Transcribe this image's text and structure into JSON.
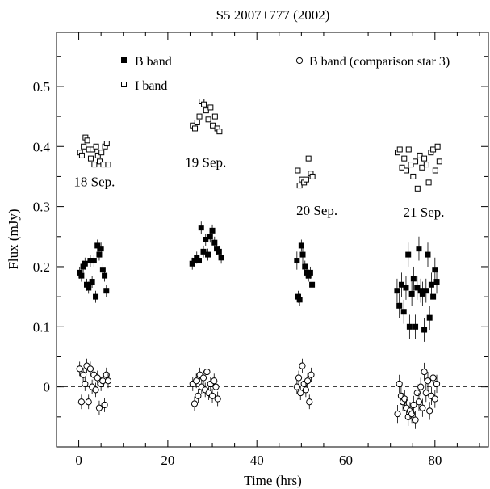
{
  "chart_data": {
    "type": "scatter",
    "title": "S5 2007+777 (2002)",
    "xlabel": "Time (hrs)",
    "ylabel": "Flux (mJy)",
    "xlim": [
      -5,
      92
    ],
    "ylim": [
      -0.1,
      0.59
    ],
    "xticks": [
      0,
      20,
      40,
      60,
      80
    ],
    "yticks": [
      0,
      0.1,
      0.2,
      0.3,
      0.4,
      0.5
    ],
    "ytick_labels": [
      "0",
      "0.1",
      "0.2",
      "0.3",
      "0.4",
      "0.5"
    ],
    "legend": [
      {
        "label": "B band",
        "marker": "filled-square"
      },
      {
        "label": "I band",
        "marker": "open-square"
      },
      {
        "label": "B band (comparison star 3)",
        "marker": "open-circle"
      }
    ],
    "reference_line": {
      "y": 0,
      "style": "dashed"
    },
    "annotations": [
      {
        "text": "18 Sep.",
        "x": 3.5,
        "y": 0.334
      },
      {
        "text": "19 Sep.",
        "x": 28.5,
        "y": 0.366
      },
      {
        "text": "20 Sep.",
        "x": 53.5,
        "y": 0.286
      },
      {
        "text": "21 Sep.",
        "x": 77.5,
        "y": 0.283
      }
    ],
    "series": [
      {
        "name": "B band",
        "marker": "filled-square",
        "points": [
          [
            0.2,
            0.19,
            0.01
          ],
          [
            0.6,
            0.185,
            0.01
          ],
          [
            1.0,
            0.2,
            0.01
          ],
          [
            1.4,
            0.205,
            0.01
          ],
          [
            1.8,
            0.17,
            0.01
          ],
          [
            2.2,
            0.165,
            0.01
          ],
          [
            2.6,
            0.21,
            0.01
          ],
          [
            3.0,
            0.175,
            0.01
          ],
          [
            3.4,
            0.21,
            0.01
          ],
          [
            3.8,
            0.15,
            0.01
          ],
          [
            4.2,
            0.235,
            0.01
          ],
          [
            4.6,
            0.22,
            0.01
          ],
          [
            5.0,
            0.23,
            0.01
          ],
          [
            5.4,
            0.195,
            0.01
          ],
          [
            5.8,
            0.185,
            0.01
          ],
          [
            6.2,
            0.16,
            0.01
          ],
          [
            25.5,
            0.205,
            0.01
          ],
          [
            26.0,
            0.21,
            0.01
          ],
          [
            26.5,
            0.215,
            0.01
          ],
          [
            27.0,
            0.21,
            0.01
          ],
          [
            27.5,
            0.265,
            0.01
          ],
          [
            28.0,
            0.225,
            0.01
          ],
          [
            28.5,
            0.245,
            0.01
          ],
          [
            29.0,
            0.22,
            0.01
          ],
          [
            29.5,
            0.25,
            0.01
          ],
          [
            30.0,
            0.26,
            0.01
          ],
          [
            30.5,
            0.24,
            0.01
          ],
          [
            31.0,
            0.23,
            0.01
          ],
          [
            31.5,
            0.225,
            0.01
          ],
          [
            32.0,
            0.215,
            0.01
          ],
          [
            49.0,
            0.21,
            0.015
          ],
          [
            49.3,
            0.15,
            0.01
          ],
          [
            49.6,
            0.145,
            0.01
          ],
          [
            50.0,
            0.235,
            0.01
          ],
          [
            50.3,
            0.22,
            0.015
          ],
          [
            50.8,
            0.2,
            0.01
          ],
          [
            51.2,
            0.19,
            0.01
          ],
          [
            51.6,
            0.185,
            0.01
          ],
          [
            52.0,
            0.19,
            0.01
          ],
          [
            52.4,
            0.17,
            0.01
          ],
          [
            71.5,
            0.16,
            0.02
          ],
          [
            72.0,
            0.135,
            0.02
          ],
          [
            72.5,
            0.17,
            0.02
          ],
          [
            73.0,
            0.125,
            0.02
          ],
          [
            73.5,
            0.165,
            0.02
          ],
          [
            74.0,
            0.22,
            0.02
          ],
          [
            74.3,
            0.1,
            0.02
          ],
          [
            74.8,
            0.155,
            0.02
          ],
          [
            75.2,
            0.18,
            0.02
          ],
          [
            75.6,
            0.1,
            0.02
          ],
          [
            76.0,
            0.165,
            0.02
          ],
          [
            76.4,
            0.23,
            0.02
          ],
          [
            76.8,
            0.16,
            0.02
          ],
          [
            77.2,
            0.155,
            0.02
          ],
          [
            77.6,
            0.095,
            0.02
          ],
          [
            78.0,
            0.16,
            0.02
          ],
          [
            78.4,
            0.22,
            0.02
          ],
          [
            78.8,
            0.115,
            0.02
          ],
          [
            79.2,
            0.17,
            0.02
          ],
          [
            79.6,
            0.15,
            0.02
          ],
          [
            80.0,
            0.195,
            0.02
          ],
          [
            80.4,
            0.175,
            0.02
          ]
        ]
      },
      {
        "name": "I band",
        "marker": "open-square",
        "points": [
          [
            0.3,
            0.39
          ],
          [
            0.7,
            0.385
          ],
          [
            1.1,
            0.4
          ],
          [
            1.5,
            0.415
          ],
          [
            1.9,
            0.41
          ],
          [
            2.3,
            0.395
          ],
          [
            2.7,
            0.38
          ],
          [
            3.1,
            0.395
          ],
          [
            3.5,
            0.37
          ],
          [
            3.9,
            0.4
          ],
          [
            4.3,
            0.385
          ],
          [
            4.7,
            0.375
          ],
          [
            5.1,
            0.39
          ],
          [
            5.5,
            0.37
          ],
          [
            5.9,
            0.4
          ],
          [
            6.3,
            0.405
          ],
          [
            6.6,
            0.37
          ],
          [
            25.6,
            0.435
          ],
          [
            26.1,
            0.43
          ],
          [
            26.6,
            0.44
          ],
          [
            27.1,
            0.45
          ],
          [
            27.6,
            0.475
          ],
          [
            28.1,
            0.47
          ],
          [
            28.6,
            0.46
          ],
          [
            29.1,
            0.445
          ],
          [
            29.6,
            0.465
          ],
          [
            30.1,
            0.435
          ],
          [
            30.6,
            0.45
          ],
          [
            31.1,
            0.43
          ],
          [
            31.6,
            0.425
          ],
          [
            49.2,
            0.36
          ],
          [
            49.6,
            0.335
          ],
          [
            50.1,
            0.345
          ],
          [
            50.6,
            0.34
          ],
          [
            51.1,
            0.345
          ],
          [
            51.6,
            0.38
          ],
          [
            52.1,
            0.355
          ],
          [
            52.5,
            0.35
          ],
          [
            71.6,
            0.39
          ],
          [
            72.1,
            0.395
          ],
          [
            72.6,
            0.365
          ],
          [
            73.1,
            0.38
          ],
          [
            73.6,
            0.36
          ],
          [
            74.1,
            0.395
          ],
          [
            74.6,
            0.37
          ],
          [
            75.1,
            0.35
          ],
          [
            75.6,
            0.375
          ],
          [
            76.1,
            0.33
          ],
          [
            76.6,
            0.385
          ],
          [
            77.1,
            0.365
          ],
          [
            77.6,
            0.38
          ],
          [
            78.1,
            0.37
          ],
          [
            78.6,
            0.34
          ],
          [
            79.1,
            0.39
          ],
          [
            79.6,
            0.395
          ],
          [
            80.1,
            0.36
          ],
          [
            80.6,
            0.4
          ],
          [
            81.0,
            0.375
          ]
        ]
      },
      {
        "name": "B band (comparison star 3)",
        "marker": "open-circle",
        "points": [
          [
            0.2,
            0.03,
            0.012
          ],
          [
            0.6,
            -0.025,
            0.012
          ],
          [
            1.0,
            0.02,
            0.012
          ],
          [
            1.4,
            0.005,
            0.012
          ],
          [
            1.8,
            0.035,
            0.012
          ],
          [
            2.2,
            -0.025,
            0.012
          ],
          [
            2.6,
            0.03,
            0.012
          ],
          [
            3.0,
            0.0,
            0.012
          ],
          [
            3.4,
            0.02,
            0.012
          ],
          [
            3.8,
            -0.005,
            0.012
          ],
          [
            4.2,
            0.015,
            0.012
          ],
          [
            4.6,
            -0.035,
            0.012
          ],
          [
            5.0,
            0.005,
            0.012
          ],
          [
            5.4,
            0.01,
            0.012
          ],
          [
            5.8,
            -0.03,
            0.012
          ],
          [
            6.2,
            0.02,
            0.012
          ],
          [
            6.6,
            0.01,
            0.012
          ],
          [
            25.6,
            0.005,
            0.012
          ],
          [
            26.0,
            -0.028,
            0.012
          ],
          [
            26.4,
            0.01,
            0.012
          ],
          [
            26.8,
            -0.015,
            0.012
          ],
          [
            27.2,
            0.02,
            0.012
          ],
          [
            27.6,
            0.0,
            0.012
          ],
          [
            28.0,
            0.015,
            0.012
          ],
          [
            28.4,
            -0.005,
            0.012
          ],
          [
            28.8,
            0.025,
            0.012
          ],
          [
            29.2,
            -0.01,
            0.012
          ],
          [
            29.6,
            0.005,
            0.012
          ],
          [
            30.0,
            -0.015,
            0.012
          ],
          [
            30.4,
            0.01,
            0.012
          ],
          [
            30.8,
            0.0,
            0.012
          ],
          [
            31.2,
            -0.02,
            0.012
          ],
          [
            49.0,
            0.0,
            0.012
          ],
          [
            49.4,
            0.015,
            0.012
          ],
          [
            49.8,
            -0.01,
            0.012
          ],
          [
            50.2,
            0.035,
            0.012
          ],
          [
            50.6,
            0.005,
            0.012
          ],
          [
            51.0,
            -0.005,
            0.012
          ],
          [
            51.4,
            0.01,
            0.012
          ],
          [
            51.8,
            -0.025,
            0.012
          ],
          [
            52.2,
            0.02,
            0.012
          ],
          [
            71.6,
            -0.045,
            0.015
          ],
          [
            72.0,
            0.005,
            0.015
          ],
          [
            72.4,
            -0.015,
            0.015
          ],
          [
            72.8,
            -0.025,
            0.015
          ],
          [
            73.2,
            -0.02,
            0.015
          ],
          [
            73.6,
            -0.035,
            0.015
          ],
          [
            74.0,
            -0.05,
            0.015
          ],
          [
            74.4,
            -0.04,
            0.015
          ],
          [
            74.8,
            -0.045,
            0.015
          ],
          [
            75.2,
            -0.03,
            0.015
          ],
          [
            75.6,
            -0.055,
            0.015
          ],
          [
            76.0,
            -0.01,
            0.015
          ],
          [
            76.4,
            -0.025,
            0.015
          ],
          [
            76.8,
            0.0,
            0.015
          ],
          [
            77.2,
            -0.035,
            0.015
          ],
          [
            77.6,
            0.025,
            0.015
          ],
          [
            78.0,
            -0.01,
            0.015
          ],
          [
            78.4,
            0.01,
            0.015
          ],
          [
            78.8,
            -0.04,
            0.015
          ],
          [
            79.2,
            -0.015,
            0.015
          ],
          [
            79.6,
            0.015,
            0.015
          ],
          [
            80.0,
            -0.02,
            0.015
          ],
          [
            80.4,
            0.005,
            0.015
          ]
        ]
      }
    ]
  }
}
